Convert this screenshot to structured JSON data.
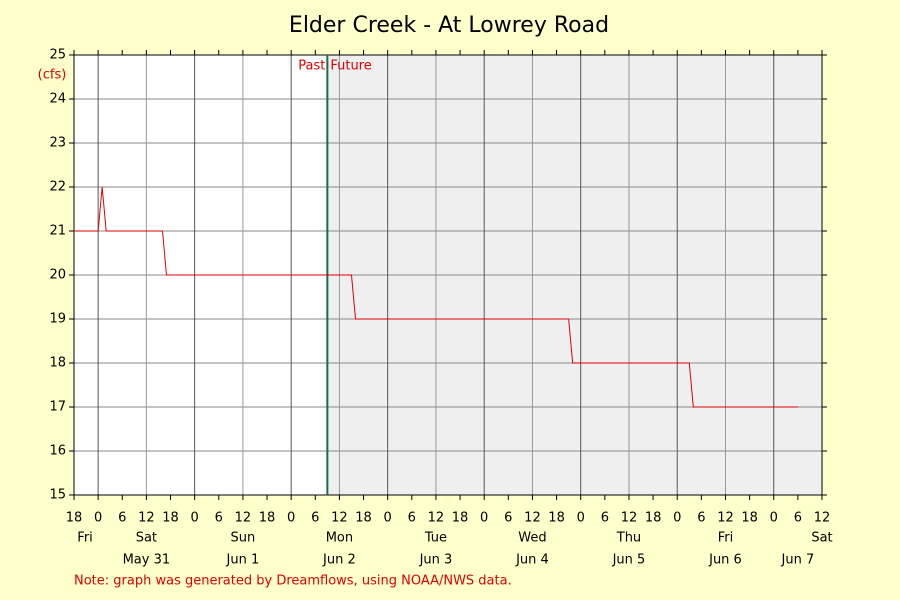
{
  "chart_data": {
    "type": "line",
    "title": "Elder Creek - At Lowrey Road",
    "y_label": "(cfs)",
    "x": [
      0,
      6,
      7,
      8,
      22,
      23,
      69,
      70,
      123,
      124,
      153,
      154,
      180
    ],
    "values": [
      21,
      21,
      22,
      21,
      21,
      20,
      20,
      19,
      19,
      18,
      18,
      17,
      17
    ],
    "color": "#e00000",
    "xlim": [
      0,
      186
    ],
    "xticks": [
      {
        "value": 0,
        "label": "18"
      },
      {
        "value": 6,
        "label": "0"
      },
      {
        "value": 12,
        "label": "6"
      },
      {
        "value": 18,
        "label": "12"
      },
      {
        "value": 24,
        "label": "18"
      },
      {
        "value": 30,
        "label": "0"
      },
      {
        "value": 36,
        "label": "6"
      },
      {
        "value": 42,
        "label": "12"
      },
      {
        "value": 48,
        "label": "18"
      },
      {
        "value": 54,
        "label": "0"
      },
      {
        "value": 60,
        "label": "6"
      },
      {
        "value": 66,
        "label": "12"
      },
      {
        "value": 72,
        "label": "18"
      },
      {
        "value": 78,
        "label": "0"
      },
      {
        "value": 84,
        "label": "6"
      },
      {
        "value": 90,
        "label": "12"
      },
      {
        "value": 96,
        "label": "18"
      },
      {
        "value": 102,
        "label": "0"
      },
      {
        "value": 108,
        "label": "6"
      },
      {
        "value": 114,
        "label": "12"
      },
      {
        "value": 120,
        "label": "18"
      },
      {
        "value": 126,
        "label": "0"
      },
      {
        "value": 132,
        "label": "6"
      },
      {
        "value": 138,
        "label": "12"
      },
      {
        "value": 144,
        "label": "18"
      },
      {
        "value": 150,
        "label": "0"
      },
      {
        "value": 156,
        "label": "6"
      },
      {
        "value": 162,
        "label": "12"
      },
      {
        "value": 168,
        "label": "18"
      },
      {
        "value": 174,
        "label": "0"
      },
      {
        "value": 180,
        "label": "6"
      },
      {
        "value": 186,
        "label": "12"
      }
    ],
    "day_names": [
      {
        "value": -6,
        "label": "Fri"
      },
      {
        "value": 18,
        "label": "Sat"
      },
      {
        "value": 42,
        "label": "Sun"
      },
      {
        "value": 66,
        "label": "Mon"
      },
      {
        "value": 90,
        "label": "Tue"
      },
      {
        "value": 114,
        "label": "Wed"
      },
      {
        "value": 138,
        "label": "Thu"
      },
      {
        "value": 162,
        "label": "Fri"
      },
      {
        "value": 186,
        "label": "Sat"
      }
    ],
    "dates": [
      {
        "value": 18,
        "label": "May 31"
      },
      {
        "value": 42,
        "label": "Jun 1"
      },
      {
        "value": 66,
        "label": "Jun 2"
      },
      {
        "value": 90,
        "label": "Jun 3"
      },
      {
        "value": 114,
        "label": "Jun 4"
      },
      {
        "value": 138,
        "label": "Jun 5"
      },
      {
        "value": 162,
        "label": "Jun 6"
      },
      {
        "value": 186,
        "label": "Jun 7"
      }
    ],
    "now": 63,
    "past_label": "Past",
    "future_label": "Future",
    "ylim": [
      15,
      25
    ],
    "yticks": [
      15,
      16,
      17,
      18,
      19,
      20,
      21,
      22,
      23,
      24,
      25
    ],
    "grid": true,
    "note": "Note: graph was generated by Dreamflows, using NOAA/NWS data."
  }
}
